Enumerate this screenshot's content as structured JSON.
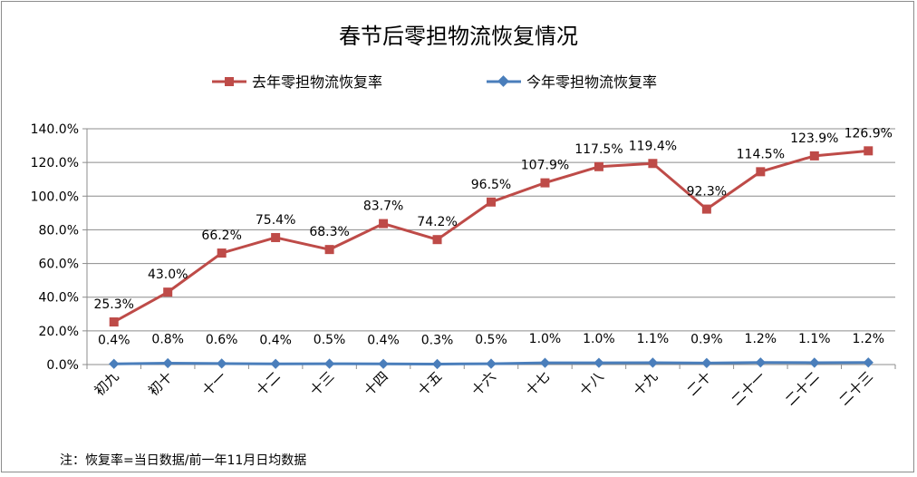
{
  "chart_data": {
    "type": "line",
    "title": "春节后零担物流恢复情况",
    "categories": [
      "初九",
      "初十",
      "十一",
      "十二",
      "十三",
      "十四",
      "十五",
      "十六",
      "十七",
      "十八",
      "十九",
      "二十",
      "二十一",
      "二十二",
      "二十三"
    ],
    "series": [
      {
        "name": "去年零担物流恢复率",
        "color": "#be4b48",
        "marker": "square",
        "values": [
          25.3,
          43.0,
          66.2,
          75.4,
          68.3,
          83.7,
          74.2,
          96.5,
          107.9,
          117.5,
          119.4,
          92.3,
          114.5,
          123.9,
          126.9
        ]
      },
      {
        "name": "今年零担物流恢复率",
        "color": "#4a7ebb",
        "marker": "diamond",
        "values": [
          0.4,
          0.8,
          0.6,
          0.4,
          0.5,
          0.4,
          0.3,
          0.5,
          1.0,
          1.0,
          1.1,
          0.9,
          1.2,
          1.1,
          1.2
        ]
      }
    ],
    "ylim": [
      0,
      140
    ],
    "yticks": [
      0,
      20,
      40,
      60,
      80,
      100,
      120,
      140
    ],
    "ytick_format": "percent_1dp",
    "legend_position": "top",
    "grid": true,
    "note": "注：恢复率=当日数据/前一年11月日均数据"
  }
}
